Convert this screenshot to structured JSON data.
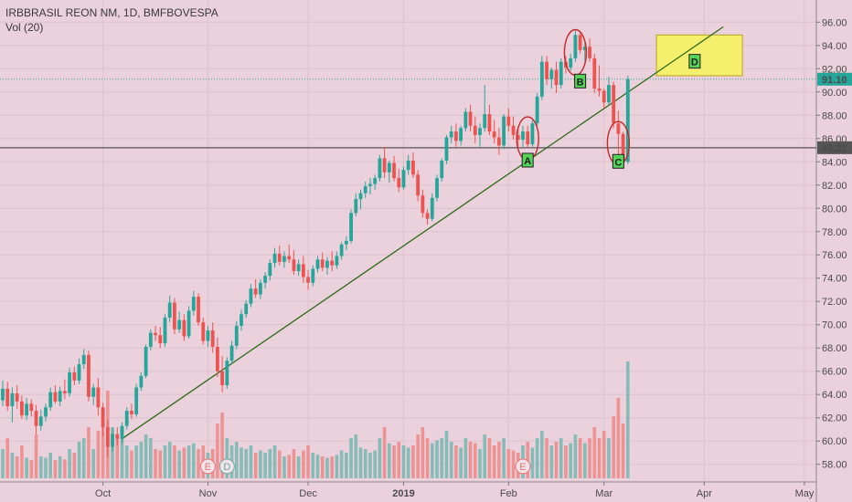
{
  "legend": {
    "symbol_line": "IRBBRASIL REON NM, 1D, BMFBOVESPA",
    "volume_line": "Vol (20)"
  },
  "colors": {
    "bg": "#ead1db",
    "up": "#26a69a",
    "down": "#ef5350",
    "up_vol": "#7ab9b3",
    "down_vol": "#ee8c8c",
    "trendline": "#2e6b1c",
    "marker": "#c62828",
    "label_bg": "#55d45a",
    "box": "#f5ef6e"
  },
  "price_axis": {
    "min": 56.8,
    "max": 97.2,
    "ticks": [
      "96.00",
      "94.00",
      "92.00",
      "90.00",
      "88.00",
      "86.00",
      "84.00",
      "82.00",
      "80.00",
      "78.00",
      "76.00",
      "74.00",
      "72.00",
      "70.00",
      "68.00",
      "66.00",
      "64.00",
      "62.00",
      "60.00",
      "58.00"
    ]
  },
  "price_tags": [
    {
      "value": 91.1,
      "label": "91.10",
      "color": "#26a69a"
    },
    {
      "value": 85.21,
      "label": "85.21",
      "color": "#555555"
    }
  ],
  "time_axis": [
    {
      "label": "Oct",
      "day": 21,
      "bold": false
    },
    {
      "label": "Nov",
      "day": 43,
      "bold": false
    },
    {
      "label": "Dec",
      "day": 64,
      "bold": false
    },
    {
      "label": "2019",
      "day": 84,
      "bold": true
    },
    {
      "label": "Feb",
      "day": 106,
      "bold": false
    },
    {
      "label": "Mar",
      "day": 126,
      "bold": false
    },
    {
      "label": "Apr",
      "day": 147,
      "bold": false
    },
    {
      "label": "May",
      "day": 168,
      "bold": false
    }
  ],
  "event_markers": [
    {
      "letter": "E",
      "day": 43,
      "kind": "earnings"
    },
    {
      "letter": "D",
      "day": 47,
      "kind": "dividend"
    },
    {
      "letter": "E",
      "day": 109,
      "kind": "earnings"
    }
  ],
  "annotations": [
    {
      "label": "A",
      "day": 110,
      "price": 84.1
    },
    {
      "label": "B",
      "day": 121,
      "price": 90.9
    },
    {
      "label": "C",
      "day": 129,
      "price": 84.0
    },
    {
      "label": "D",
      "day": 145,
      "price": 92.6
    }
  ],
  "chart_data": {
    "type": "candlestick",
    "title": "IRBBRASIL REON NM, 1D, BMFBOVESPA",
    "volume_label": "Vol (20)",
    "ylim": [
      56.8,
      97.2
    ],
    "current_price": 91.1,
    "horizontal_line": 85.21,
    "trendline": {
      "start": {
        "day": 25,
        "price": 60.2
      },
      "end": {
        "day": 151,
        "price": 95.6
      }
    },
    "highlight_box": {
      "day_start": 137,
      "day_end": 155,
      "price_top": 94.9,
      "price_bottom": 91.4
    },
    "circled": [
      {
        "day": 110,
        "price": 86.0,
        "span": 3.4
      },
      {
        "day": 120,
        "price": 93.4,
        "span": 3.6
      },
      {
        "day": 129,
        "price": 85.6,
        "span": 3.4
      }
    ],
    "candles": [
      [
        63.5,
        65.2,
        63.0,
        64.5,
        40
      ],
      [
        64.5,
        65.1,
        62.6,
        63.0,
        55
      ],
      [
        63.0,
        64.6,
        61.6,
        64.1,
        35
      ],
      [
        64.1,
        64.8,
        62.8,
        63.4,
        30
      ],
      [
        63.4,
        63.9,
        61.9,
        62.2,
        45
      ],
      [
        62.2,
        63.7,
        61.8,
        63.2,
        28
      ],
      [
        63.2,
        63.6,
        62.1,
        62.6,
        25
      ],
      [
        62.6,
        63.1,
        60.6,
        61.3,
        60
      ],
      [
        61.3,
        62.7,
        60.9,
        62.1,
        30
      ],
      [
        62.1,
        63.2,
        61.7,
        62.9,
        28
      ],
      [
        62.9,
        64.6,
        62.6,
        64.2,
        35
      ],
      [
        64.2,
        64.8,
        63.2,
        63.4,
        25
      ],
      [
        63.4,
        64.7,
        63.0,
        64.3,
        30
      ],
      [
        64.3,
        65.3,
        63.6,
        64.1,
        26
      ],
      [
        64.1,
        66.3,
        63.8,
        65.9,
        40
      ],
      [
        65.9,
        66.4,
        64.8,
        65.2,
        35
      ],
      [
        65.2,
        67.1,
        64.9,
        66.6,
        50
      ],
      [
        66.6,
        67.9,
        66.2,
        67.4,
        55
      ],
      [
        67.4,
        67.8,
        63.4,
        63.8,
        70
      ],
      [
        63.8,
        64.9,
        63.1,
        64.6,
        40
      ],
      [
        64.6,
        65.4,
        62.2,
        62.9,
        65
      ],
      [
        62.9,
        63.3,
        60.4,
        61.2,
        80
      ],
      [
        61.2,
        61.8,
        58.6,
        59.5,
        120
      ],
      [
        59.5,
        61.1,
        59.1,
        60.6,
        70
      ],
      [
        60.6,
        61.2,
        59.6,
        60.2,
        60
      ],
      [
        60.2,
        61.6,
        59.8,
        61.3,
        55
      ],
      [
        61.3,
        62.9,
        61.0,
        62.6,
        45
      ],
      [
        62.6,
        63.2,
        61.9,
        62.3,
        38
      ],
      [
        62.3,
        64.9,
        62.1,
        64.6,
        45
      ],
      [
        64.6,
        65.9,
        64.3,
        65.6,
        50
      ],
      [
        65.6,
        68.3,
        65.4,
        68.1,
        60
      ],
      [
        68.1,
        69.6,
        67.8,
        69.3,
        55
      ],
      [
        69.3,
        69.9,
        68.6,
        69.1,
        40
      ],
      [
        69.1,
        69.8,
        68.0,
        68.4,
        38
      ],
      [
        68.4,
        70.9,
        68.1,
        70.6,
        45
      ],
      [
        70.6,
        72.5,
        70.2,
        71.9,
        50
      ],
      [
        71.9,
        72.3,
        69.2,
        69.6,
        45
      ],
      [
        69.6,
        71.1,
        69.3,
        70.4,
        38
      ],
      [
        70.4,
        70.9,
        68.6,
        69.0,
        42
      ],
      [
        69.0,
        71.6,
        68.8,
        71.2,
        45
      ],
      [
        71.2,
        72.9,
        70.8,
        72.4,
        48
      ],
      [
        72.4,
        72.7,
        69.9,
        70.2,
        40
      ],
      [
        70.2,
        70.6,
        68.3,
        68.6,
        45
      ],
      [
        68.6,
        69.9,
        68.1,
        69.5,
        35
      ],
      [
        69.5,
        70.2,
        67.6,
        68.1,
        40
      ],
      [
        68.1,
        68.9,
        65.5,
        66.0,
        75
      ],
      [
        66.0,
        67.3,
        64.2,
        64.8,
        90
      ],
      [
        64.8,
        67.2,
        64.5,
        66.9,
        55
      ],
      [
        66.9,
        68.6,
        66.6,
        68.2,
        45
      ],
      [
        68.2,
        70.3,
        67.9,
        69.9,
        50
      ],
      [
        69.9,
        71.3,
        69.5,
        70.9,
        42
      ],
      [
        70.9,
        72.1,
        70.6,
        71.8,
        40
      ],
      [
        71.8,
        73.5,
        71.5,
        73.1,
        45
      ],
      [
        73.1,
        73.9,
        72.3,
        72.6,
        35
      ],
      [
        72.6,
        73.9,
        72.2,
        73.6,
        38
      ],
      [
        73.6,
        74.5,
        73.1,
        74.2,
        35
      ],
      [
        74.2,
        75.6,
        73.8,
        75.3,
        40
      ],
      [
        75.3,
        76.6,
        74.9,
        76.1,
        45
      ],
      [
        76.1,
        76.8,
        75.1,
        75.4,
        38
      ],
      [
        75.4,
        76.3,
        74.9,
        75.9,
        30
      ],
      [
        75.9,
        76.9,
        75.3,
        75.6,
        32
      ],
      [
        75.6,
        76.4,
        74.3,
        74.6,
        40
      ],
      [
        74.6,
        75.6,
        74.2,
        75.2,
        30
      ],
      [
        75.2,
        75.9,
        73.6,
        74.1,
        38
      ],
      [
        74.1,
        74.7,
        73.0,
        73.6,
        45
      ],
      [
        73.6,
        75.1,
        73.3,
        74.8,
        35
      ],
      [
        74.8,
        75.9,
        74.5,
        75.6,
        32
      ],
      [
        75.6,
        76.2,
        74.6,
        74.9,
        30
      ],
      [
        74.9,
        75.8,
        74.3,
        75.5,
        28
      ],
      [
        75.5,
        76.3,
        74.6,
        75.1,
        30
      ],
      [
        75.1,
        76.3,
        74.8,
        75.9,
        32
      ],
      [
        75.9,
        77.1,
        75.6,
        76.9,
        38
      ],
      [
        76.9,
        77.6,
        76.4,
        77.2,
        35
      ],
      [
        77.2,
        79.9,
        77.0,
        79.6,
        55
      ],
      [
        79.6,
        81.3,
        79.3,
        80.8,
        60
      ],
      [
        80.8,
        81.6,
        79.9,
        81.3,
        42
      ],
      [
        81.3,
        82.3,
        80.9,
        81.9,
        40
      ],
      [
        81.9,
        82.6,
        81.2,
        82.1,
        35
      ],
      [
        82.1,
        82.9,
        81.6,
        82.6,
        38
      ],
      [
        82.6,
        84.6,
        82.3,
        84.3,
        55
      ],
      [
        84.3,
        85.3,
        82.6,
        83.1,
        70
      ],
      [
        83.1,
        84.1,
        82.2,
        83.9,
        48
      ],
      [
        83.9,
        84.5,
        82.3,
        82.6,
        45
      ],
      [
        82.6,
        83.4,
        81.4,
        81.8,
        50
      ],
      [
        81.8,
        83.6,
        81.6,
        83.3,
        45
      ],
      [
        83.3,
        84.6,
        82.9,
        84.1,
        42
      ],
      [
        84.1,
        84.8,
        82.6,
        82.9,
        45
      ],
      [
        82.9,
        83.3,
        80.6,
        81.1,
        60
      ],
      [
        81.1,
        81.6,
        79.2,
        79.6,
        70
      ],
      [
        79.6,
        79.9,
        78.6,
        79.1,
        55
      ],
      [
        79.1,
        81.3,
        78.9,
        80.9,
        48
      ],
      [
        80.9,
        82.9,
        80.6,
        82.6,
        52
      ],
      [
        82.6,
        84.3,
        82.3,
        84.1,
        55
      ],
      [
        84.1,
        86.3,
        83.8,
        86.1,
        65
      ],
      [
        86.1,
        87.1,
        85.6,
        86.6,
        50
      ],
      [
        86.6,
        87.3,
        85.3,
        85.8,
        45
      ],
      [
        85.8,
        87.1,
        85.4,
        86.9,
        42
      ],
      [
        86.9,
        88.6,
        86.6,
        88.3,
        55
      ],
      [
        88.3,
        88.9,
        86.6,
        87.1,
        50
      ],
      [
        87.1,
        87.9,
        85.6,
        86.3,
        48
      ],
      [
        86.3,
        87.3,
        85.3,
        86.9,
        40
      ],
      [
        86.9,
        90.6,
        86.6,
        88.1,
        60
      ],
      [
        88.1,
        88.9,
        86.3,
        86.6,
        55
      ],
      [
        86.6,
        87.6,
        85.6,
        86.1,
        45
      ],
      [
        86.1,
        86.9,
        84.6,
        85.4,
        50
      ],
      [
        85.4,
        88.1,
        85.1,
        87.9,
        55
      ],
      [
        87.9,
        88.6,
        86.6,
        87.1,
        40
      ],
      [
        87.1,
        87.9,
        85.9,
        86.3,
        38
      ],
      [
        86.3,
        86.9,
        85.3,
        85.9,
        35
      ],
      [
        85.9,
        87.1,
        85.3,
        86.6,
        45
      ],
      [
        86.6,
        87.1,
        85.2,
        85.5,
        50
      ],
      [
        85.5,
        87.6,
        85.3,
        87.3,
        42
      ],
      [
        87.3,
        89.9,
        87.1,
        89.6,
        55
      ],
      [
        89.6,
        93.1,
        89.3,
        92.6,
        65
      ],
      [
        92.6,
        93.1,
        90.6,
        91.1,
        55
      ],
      [
        91.1,
        92.1,
        90.3,
        91.9,
        45
      ],
      [
        91.9,
        92.6,
        89.9,
        90.6,
        50
      ],
      [
        90.6,
        92.9,
        90.3,
        92.6,
        55
      ],
      [
        92.6,
        93.1,
        91.6,
        92.1,
        45
      ],
      [
        92.1,
        93.3,
        91.8,
        92.9,
        48
      ],
      [
        92.9,
        95.3,
        92.6,
        94.9,
        60
      ],
      [
        94.9,
        95.1,
        93.3,
        93.6,
        55
      ],
      [
        93.6,
        94.3,
        92.6,
        93.9,
        48
      ],
      [
        93.9,
        94.6,
        92.6,
        92.9,
        55
      ],
      [
        92.9,
        93.3,
        89.9,
        90.3,
        70
      ],
      [
        90.3,
        92.3,
        89.6,
        90.1,
        55
      ],
      [
        90.1,
        90.3,
        88.6,
        89.1,
        65
      ],
      [
        89.1,
        91.3,
        88.9,
        90.6,
        55
      ],
      [
        90.6,
        90.9,
        86.9,
        87.3,
        85
      ],
      [
        87.3,
        88.4,
        83.8,
        86.4,
        110
      ],
      [
        86.4,
        86.6,
        83.6,
        84.0,
        75
      ],
      [
        84.0,
        91.4,
        83.8,
        91.1,
        160
      ]
    ]
  }
}
